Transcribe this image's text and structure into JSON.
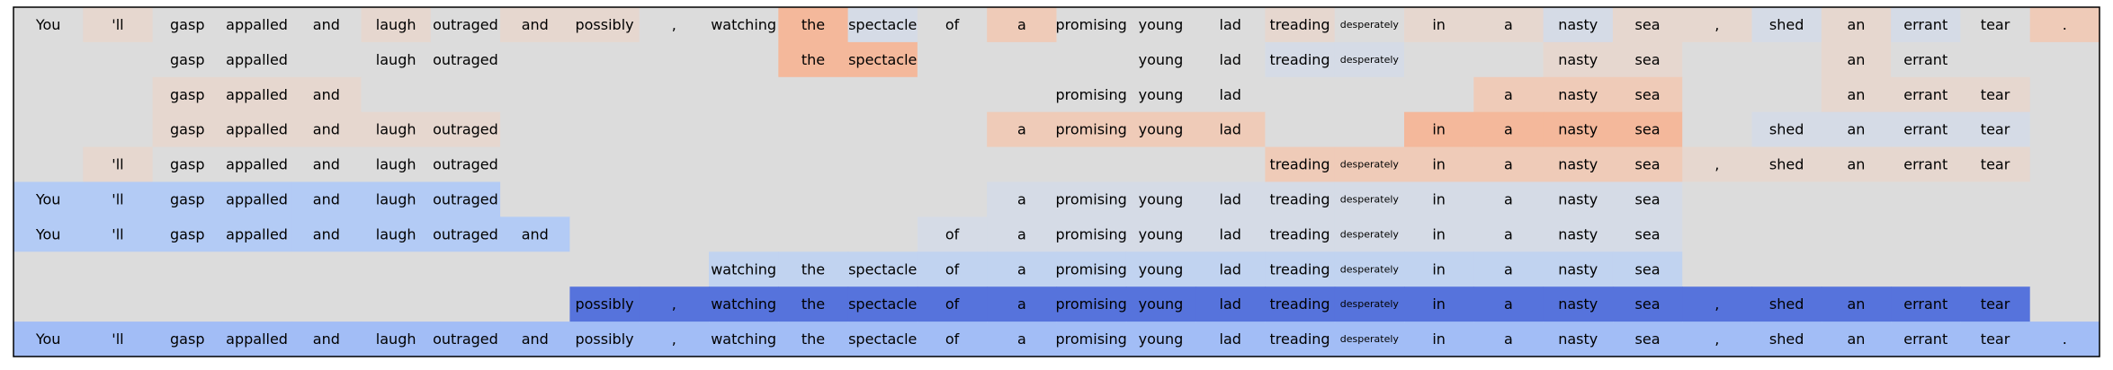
{
  "chart_data": {
    "type": "heatmap",
    "title": "",
    "xlabel": "",
    "ylabel": "",
    "grid": false,
    "legend": "none",
    "tokens": [
      "You",
      "'ll",
      "gasp",
      "appalled",
      "and",
      "laugh",
      "outraged",
      "and",
      "possibly",
      ",",
      "watching",
      "the",
      "spectacle",
      "of",
      "a",
      "promising",
      "young",
      "lad",
      "treading",
      "desperately",
      "in",
      "a",
      "nasty",
      "sea",
      ",",
      "shed",
      "an",
      "errant",
      "tear",
      "."
    ],
    "small_tokens": [
      "desperately"
    ],
    "colors": {
      "neutral": "#dcdcdc",
      "warm_light": "#e6d7cf",
      "warm": "#efcbb8",
      "warm_strong": "#f4b89b",
      "cool_light": "#d5dbe6",
      "cool": "#c1d3f0",
      "cool_mid": "#b3cbf5",
      "cool_strong": "#a2bdf6",
      "deep_blue": "#5673dc",
      "frame": "#000000"
    },
    "rows": [
      {
        "visible": [
          1,
          1,
          1,
          1,
          1,
          1,
          1,
          1,
          1,
          1,
          1,
          1,
          1,
          1,
          1,
          1,
          1,
          1,
          1,
          1,
          1,
          1,
          1,
          1,
          1,
          1,
          1,
          1,
          1,
          1
        ],
        "cells": [
          "neutral",
          "warm_light",
          "neutral",
          "neutral",
          "neutral",
          "warm_light",
          "neutral",
          "warm_light",
          "warm_light",
          "neutral",
          "neutral",
          "warm_strong",
          "cool_light",
          "neutral",
          "warm",
          "neutral",
          "neutral",
          "neutral",
          "warm_light",
          "neutral",
          "warm_light",
          "warm_light",
          "cool_light",
          "warm_light",
          "warm_light",
          "cool_light",
          "warm_light",
          "cool_light",
          "neutral",
          "warm"
        ]
      },
      {
        "visible": [
          0,
          0,
          1,
          1,
          0,
          1,
          1,
          0,
          0,
          0,
          0,
          1,
          1,
          0,
          0,
          0,
          1,
          1,
          1,
          1,
          0,
          0,
          1,
          1,
          0,
          0,
          1,
          1,
          0,
          0
        ],
        "cells": [
          "neutral",
          "neutral",
          "neutral",
          "neutral",
          "neutral",
          "neutral",
          "neutral",
          "neutral",
          "neutral",
          "neutral",
          "neutral",
          "warm_strong",
          "warm_strong",
          "neutral",
          "neutral",
          "neutral",
          "neutral",
          "neutral",
          "cool_light",
          "cool_light",
          "neutral",
          "neutral",
          "warm_light",
          "warm_light",
          "neutral",
          "neutral",
          "warm_light",
          "neutral",
          "neutral",
          "neutral"
        ]
      },
      {
        "visible": [
          0,
          0,
          1,
          1,
          1,
          0,
          0,
          0,
          0,
          0,
          0,
          0,
          0,
          0,
          0,
          1,
          1,
          1,
          0,
          0,
          0,
          1,
          1,
          1,
          0,
          0,
          1,
          1,
          1,
          0
        ],
        "cells": [
          "neutral",
          "neutral",
          "warm_light",
          "warm_light",
          "warm_light",
          "neutral",
          "neutral",
          "neutral",
          "neutral",
          "neutral",
          "neutral",
          "neutral",
          "neutral",
          "neutral",
          "neutral",
          "neutral",
          "neutral",
          "neutral",
          "neutral",
          "neutral",
          "neutral",
          "warm",
          "warm",
          "warm",
          "neutral",
          "neutral",
          "warm_light",
          "warm_light",
          "warm_light",
          "neutral"
        ]
      },
      {
        "visible": [
          0,
          0,
          1,
          1,
          1,
          1,
          1,
          0,
          0,
          0,
          0,
          0,
          0,
          0,
          1,
          1,
          1,
          1,
          0,
          0,
          1,
          1,
          1,
          1,
          0,
          1,
          1,
          1,
          1,
          0
        ],
        "cells": [
          "neutral",
          "neutral",
          "warm_light",
          "warm_light",
          "warm_light",
          "warm_light",
          "warm_light",
          "neutral",
          "neutral",
          "neutral",
          "neutral",
          "neutral",
          "neutral",
          "neutral",
          "warm",
          "warm",
          "warm",
          "warm",
          "neutral",
          "neutral",
          "warm_strong",
          "warm_strong",
          "warm_strong",
          "warm_strong",
          "neutral",
          "cool_light",
          "cool_light",
          "cool_light",
          "cool_light",
          "neutral"
        ]
      },
      {
        "visible": [
          0,
          1,
          1,
          1,
          1,
          1,
          1,
          0,
          0,
          0,
          0,
          0,
          0,
          0,
          0,
          0,
          0,
          0,
          1,
          1,
          1,
          1,
          1,
          1,
          1,
          1,
          1,
          1,
          1,
          0
        ],
        "cells": [
          "neutral",
          "warm_light",
          "neutral",
          "neutral",
          "neutral",
          "neutral",
          "neutral",
          "neutral",
          "neutral",
          "neutral",
          "neutral",
          "neutral",
          "neutral",
          "neutral",
          "neutral",
          "neutral",
          "neutral",
          "neutral",
          "warm",
          "warm",
          "warm",
          "warm",
          "warm",
          "warm",
          "warm_light",
          "warm_light",
          "warm_light",
          "warm_light",
          "warm_light",
          "neutral"
        ]
      },
      {
        "visible": [
          1,
          1,
          1,
          1,
          1,
          1,
          1,
          0,
          0,
          0,
          0,
          0,
          0,
          0,
          1,
          1,
          1,
          1,
          1,
          1,
          1,
          1,
          1,
          1,
          0,
          0,
          0,
          0,
          0,
          0
        ],
        "cells": [
          "cool_mid",
          "cool_mid",
          "cool_mid",
          "cool_mid",
          "cool_mid",
          "cool_mid",
          "cool_mid",
          "neutral",
          "neutral",
          "neutral",
          "neutral",
          "neutral",
          "neutral",
          "neutral",
          "cool_light",
          "cool_light",
          "cool_light",
          "cool_light",
          "cool_light",
          "cool_light",
          "cool_light",
          "cool_light",
          "cool_light",
          "cool_light",
          "neutral",
          "neutral",
          "neutral",
          "neutral",
          "neutral",
          "neutral"
        ]
      },
      {
        "visible": [
          1,
          1,
          1,
          1,
          1,
          1,
          1,
          1,
          0,
          0,
          0,
          0,
          0,
          1,
          1,
          1,
          1,
          1,
          1,
          1,
          1,
          1,
          1,
          1,
          0,
          0,
          0,
          0,
          0,
          0
        ],
        "cells": [
          "cool_mid",
          "cool_mid",
          "cool_mid",
          "cool_mid",
          "cool_mid",
          "cool_mid",
          "cool_mid",
          "cool_mid",
          "neutral",
          "neutral",
          "neutral",
          "neutral",
          "neutral",
          "cool_light",
          "cool_light",
          "cool_light",
          "cool_light",
          "cool_light",
          "cool_light",
          "cool_light",
          "cool_light",
          "cool_light",
          "cool_light",
          "cool_light",
          "neutral",
          "neutral",
          "neutral",
          "neutral",
          "neutral",
          "neutral"
        ]
      },
      {
        "visible": [
          0,
          0,
          0,
          0,
          0,
          0,
          0,
          0,
          0,
          0,
          1,
          1,
          1,
          1,
          1,
          1,
          1,
          1,
          1,
          1,
          1,
          1,
          1,
          1,
          0,
          0,
          0,
          0,
          0,
          0
        ],
        "cells": [
          "neutral",
          "neutral",
          "neutral",
          "neutral",
          "neutral",
          "neutral",
          "neutral",
          "neutral",
          "neutral",
          "neutral",
          "cool",
          "cool",
          "cool",
          "cool",
          "cool",
          "cool",
          "cool",
          "cool",
          "cool",
          "cool",
          "cool",
          "cool",
          "cool",
          "cool",
          "neutral",
          "neutral",
          "neutral",
          "neutral",
          "neutral",
          "neutral"
        ]
      },
      {
        "visible": [
          0,
          0,
          0,
          0,
          0,
          0,
          0,
          0,
          1,
          1,
          1,
          1,
          1,
          1,
          1,
          1,
          1,
          1,
          1,
          1,
          1,
          1,
          1,
          1,
          1,
          1,
          1,
          1,
          1,
          0
        ],
        "cells": [
          "neutral",
          "neutral",
          "neutral",
          "neutral",
          "neutral",
          "neutral",
          "neutral",
          "neutral",
          "deep_blue",
          "deep_blue",
          "deep_blue",
          "deep_blue",
          "deep_blue",
          "deep_blue",
          "deep_blue",
          "deep_blue",
          "deep_blue",
          "deep_blue",
          "deep_blue",
          "deep_blue",
          "deep_blue",
          "deep_blue",
          "deep_blue",
          "deep_blue",
          "deep_blue",
          "deep_blue",
          "deep_blue",
          "deep_blue",
          "deep_blue",
          "neutral"
        ]
      },
      {
        "visible": [
          1,
          1,
          1,
          1,
          1,
          1,
          1,
          1,
          1,
          1,
          1,
          1,
          1,
          1,
          1,
          1,
          1,
          1,
          1,
          1,
          1,
          1,
          1,
          1,
          1,
          1,
          1,
          1,
          1,
          1
        ],
        "cells": [
          "cool_strong",
          "cool_strong",
          "cool_strong",
          "cool_strong",
          "cool_strong",
          "cool_strong",
          "cool_strong",
          "cool_strong",
          "cool_strong",
          "cool_strong",
          "cool_strong",
          "cool_strong",
          "cool_strong",
          "cool_strong",
          "cool_strong",
          "cool_strong",
          "cool_strong",
          "cool_strong",
          "cool_strong",
          "cool_strong",
          "cool_strong",
          "cool_strong",
          "cool_strong",
          "cool_strong",
          "cool_strong",
          "cool_strong",
          "cool_strong",
          "cool_strong",
          "cool_strong",
          "cool_strong"
        ]
      }
    ]
  }
}
